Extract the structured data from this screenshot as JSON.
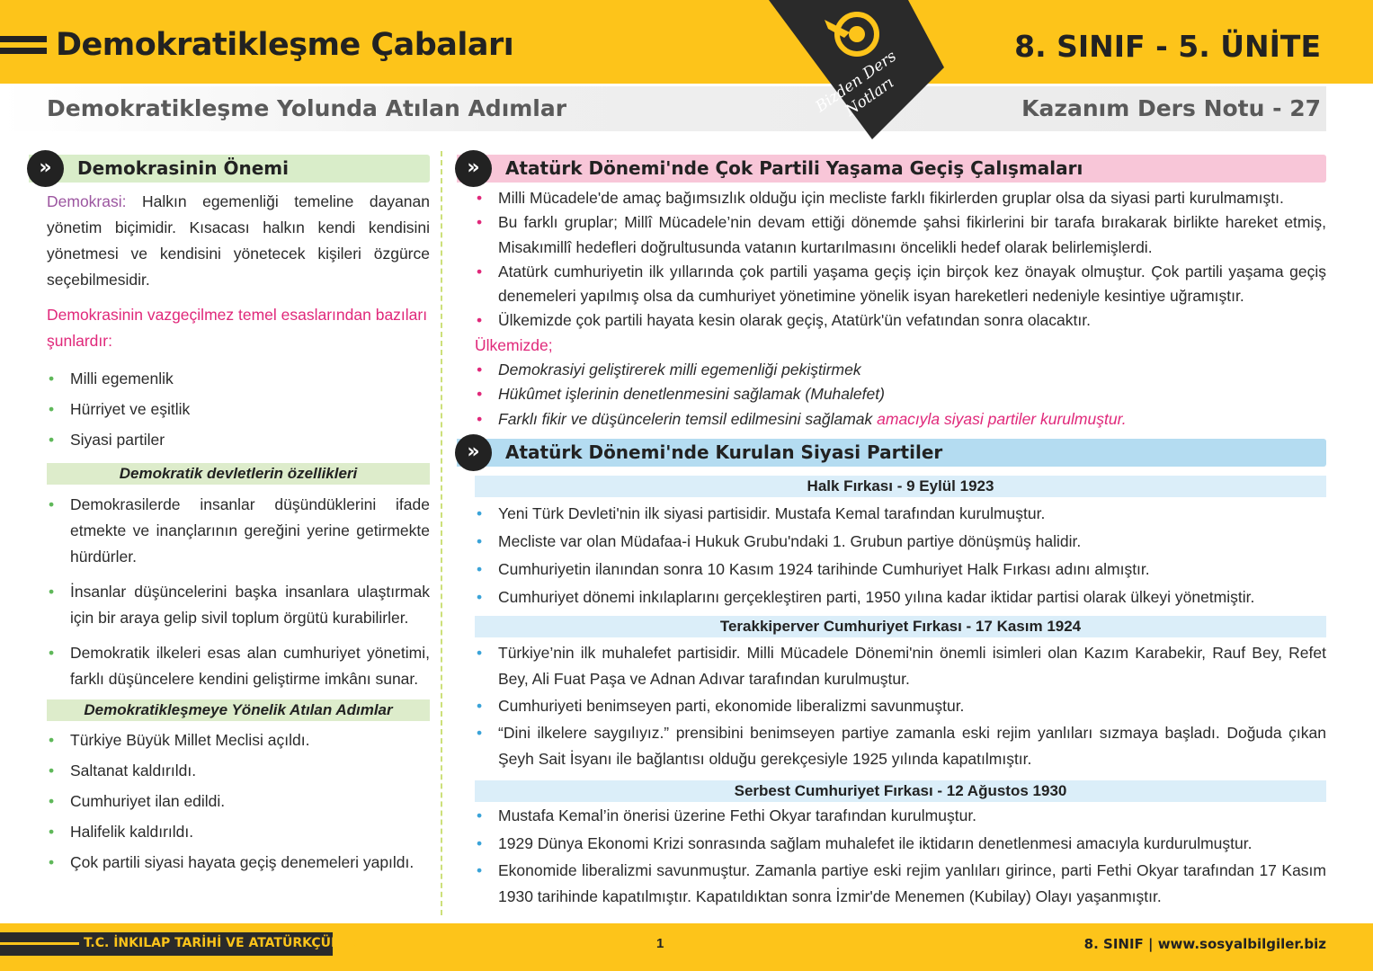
{
  "header": {
    "title": "Demokratikleşme Çabaları",
    "unit": "8. SINIF - 5. ÜNİTE",
    "subtitle": "Demokratikleşme Yolunda Atılan Adımlar",
    "note": "Kazanım Ders Notu - 27",
    "logo_text": "Bizden Ders Notları",
    "brand_color": "#fdc41a"
  },
  "left": {
    "section_title": "Demokrasinin Önemi",
    "definition_term": "Demokrasi:",
    "definition_text": " Halkın egemenliği temeline dayanan yönetim biçimidir. Kısacası halkın kendi kendisini yönetmesi ve kendisini yönetecek kişileri özgürce seçebilmesidir.",
    "principles_intro": "Demokrasinin vazgeçilmez temel esaslarından bazıları şunlardır:",
    "principles": [
      "Milli egemenlik",
      "Hürriyet ve eşitlik",
      "Siyasi partiler"
    ],
    "features_title": "Demokratik devletlerin özellikleri",
    "features": [
      "Demokrasilerde insanlar düşündüklerini ifade etmekte ve inançlarının gereğini yerine getirmekte hürdürler.",
      "İnsanlar düşüncelerini başka insanlara ulaştırmak için bir araya gelip sivil toplum örgütü kurabilirler.",
      "Demokratik ilkeleri esas alan cumhuriyet yönetimi, farklı düşüncelere kendini geliştirme imkânı sunar."
    ],
    "steps_title": "Demokratikleşmeye Yönelik Atılan Adımlar",
    "steps": [
      "Türkiye Büyük Millet Meclisi açıldı.",
      "Saltanat kaldırıldı.",
      "Cumhuriyet ilan edildi.",
      "Halifelik kaldırıldı.",
      "Çok partili siyasi hayata geçiş denemeleri yapıldı."
    ]
  },
  "right": {
    "section1_title": "Atatürk Dönemi'nde Çok Partili Yaşama Geçiş Çalışmaları",
    "section1_items": [
      "Milli Mücadele'de amaç bağımsızlık olduğu için mecliste farklı fikirlerden gruplar olsa da siyasi parti kurulmamıştı.",
      "Bu farklı gruplar; Millî Mücadele’nin devam ettiği dönemde şahsi fikirlerini bir tarafa bırakarak birlikte hareket etmiş, Misakımillî hedefleri doğrultusunda vatanın kurtarılmasını öncelikli hedef olarak belirlemişlerdi.",
      "Atatürk cumhuriyetin ilk yıllarında çok partili yaşama geçiş için birçok kez önayak olmuştur. Çok partili yaşama geçiş denemeleri yapılmış olsa da cumhuriyet yönetimine yönelik isyan hareketleri nedeniyle kesintiye uğramıştır.",
      "Ülkemizde çok partili hayata kesin olarak geçiş, Atatürk'ün vefatından sonra olacaktır."
    ],
    "purpose_intro": "Ülkemizde;",
    "purpose_items": [
      "Demokrasiyi geliştirerek milli egemenliği pekiştirmek",
      "Hükûmet işlerinin denetlenmesini sağlamak (Muhalefet)",
      "Farklı fikir ve düşüncelerin temsil edilmesini sağlamak"
    ],
    "purpose_conclusion": " amacıyla siyasi partiler kurulmuştur.",
    "section2_title": "Atatürk Dönemi'nde Kurulan Siyasi Partiler",
    "parties": [
      {
        "name": "Halk Fırkası - 9 Eylül 1923",
        "items": [
          "Yeni Türk Devleti'nin ilk siyasi partisidir. Mustafa Kemal tarafından kurulmuştur.",
          "Mecliste var olan Müdafaa-i Hukuk Grubu'ndaki 1. Grubun partiye dönüşmüş halidir.",
          "Cumhuriyetin ilanından sonra 10 Kasım 1924 tarihinde Cumhuriyet Halk Fırkası adını almıştır.",
          "Cumhuriyet dönemi inkılaplarını gerçekleştiren parti, 1950 yılına kadar iktidar partisi olarak ülkeyi yönetmiştir."
        ]
      },
      {
        "name": "Terakkiperver Cumhuriyet Fırkası - 17 Kasım 1924",
        "items": [
          "Türkiye’nin ilk muhalefet partisidir. Milli Mücadele Dönemi'nin önemli isimleri olan Kazım Karabekir, Rauf Bey, Refet Bey, Ali Fuat Paşa ve Adnan Adıvar tarafından kurulmuştur.",
          "Cumhuriyeti benimseyen parti, ekonomide liberalizmi savunmuştur.",
          "“Dini ilkelere saygılıyız.” prensibini benimseyen partiye zamanla eski rejim yanlıları sızmaya başladı. Doğuda çıkan Şeyh Sait İsyanı ile bağlantısı olduğu gerekçesiyle 1925 yılında kapatılmıştır."
        ]
      },
      {
        "name": "Serbest Cumhuriyet Fırkası - 12 Ağustos 1930",
        "items": [
          "Mustafa Kemal’in önerisi üzerine Fethi Okyar tarafından kurulmuştur.",
          "1929 Dünya Ekonomi Krizi sonrasında sağlam muhalefet ile iktidarın denetlenmesi amacıyla kurdurulmuştur.",
          "Ekonomide liberalizmi savunmuştur. Zamanla partiye eski rejim yanlıları girince, parti Fethi Okyar tarafından 17 Kasım 1930 tarihinde kapatılmıştır. Kapatıldıktan sonra İzmir'de Menemen (Kubilay) Olayı yaşanmıştır."
        ]
      }
    ]
  },
  "footer": {
    "course": "T.C. İNKILAP TARİHİ VE ATATÜRKÇÜLÜK",
    "page": "1",
    "grade_site": "8. SINIF  |  www.sosyalbilgiler.biz"
  }
}
